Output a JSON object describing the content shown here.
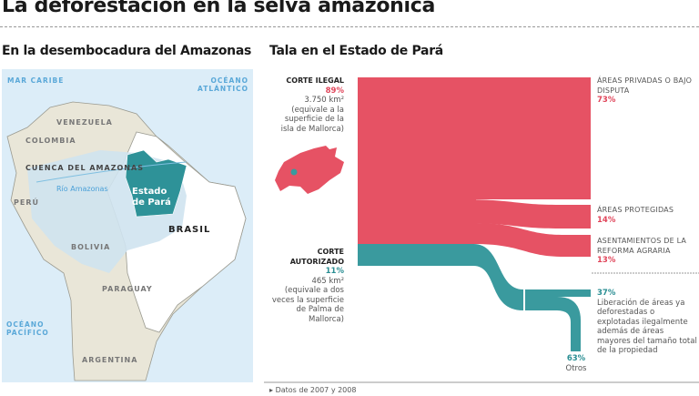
{
  "title": "La deforestación en la selva amazónica",
  "map": {
    "heading": "En la desembocadura del Amazonas",
    "labels": {
      "mar_caribe": "MAR CARIBE",
      "oceano_atlantico_1": "OCÉANO",
      "oceano_atlantico_2": "ATLÁNTICO",
      "venezuela": "VENEZUELA",
      "colombia": "COLOMBIA",
      "cuenca": "CUENCA DEL AMAZONAS",
      "rio": "Río Amazonas",
      "peru": "PERÚ",
      "para_1": "Estado",
      "para_2": "de Pará",
      "brasil": "BRASIL",
      "bolivia": "BOLIVIA",
      "paraguay": "PARAGUAY",
      "oceano_pacifico_1": "OCÉANO",
      "oceano_pacifico_2": "PACÍFICO",
      "argentina": "ARGENTINA"
    }
  },
  "flow": {
    "heading": "Tala en el Estado de Pará",
    "colors": {
      "illegal": "#e65264",
      "authorized": "#3a9a9e"
    },
    "illegal": {
      "label": "CORTE ILEGAL",
      "percent": "89%",
      "area": "3.750 km²",
      "note": "(equivale a la superficie de la isla de Mallorca)",
      "value": 89
    },
    "authorized": {
      "label_1": "CORTE",
      "label_2": "AUTORIZADO",
      "percent": "11%",
      "area": "465 km²",
      "note": "(equivale a dos veces la superficie de Palma de Mallorca)",
      "value": 11
    },
    "illegal_outputs": [
      {
        "label": "Áreas privadas o bajo disputa",
        "percent": "73%",
        "value": 73
      },
      {
        "label": "Áreas protegidas",
        "percent": "14%",
        "value": 14
      },
      {
        "label": "Asentamientos de la reforma agraria",
        "percent": "13%",
        "value": 13
      }
    ],
    "authorized_outputs": [
      {
        "label": "Liberación de áreas ya deforestadas o explotadas ilegalmente además de áreas mayores del tamaño total de la propiedad",
        "percent": "37%",
        "value": 37
      },
      {
        "label": "Otros",
        "percent": "63%",
        "value": 63
      }
    ]
  },
  "footer": "Datos de 2007 y 2008"
}
